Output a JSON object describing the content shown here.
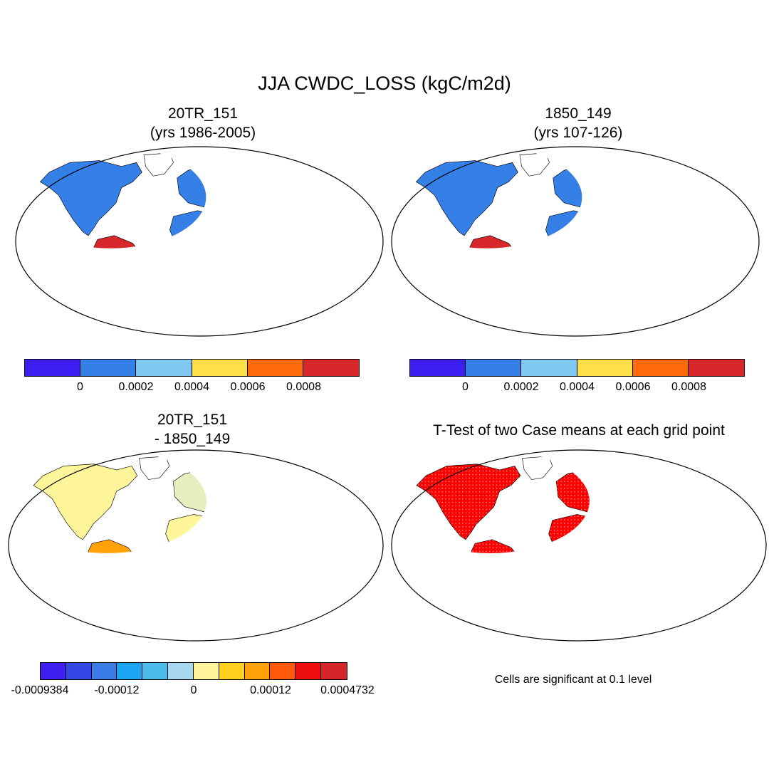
{
  "title": "JJA CWDC_LOSS (kgC/m2d)",
  "panels": [
    {
      "id": "case1",
      "title_line1": "20TR_151",
      "title_line2": "(yrs 1986-2005)",
      "colorbar": {
        "colors": [
          "#3c1ff0",
          "#3580e6",
          "#7fc8f0",
          "#fde048",
          "#ff6a0a",
          "#d8272a"
        ],
        "tick_labels": [
          "0",
          "0.0002",
          "0.0004",
          "0.0006",
          "0.0008"
        ]
      }
    },
    {
      "id": "case2",
      "title_line1": "1850_149",
      "title_line2": "(yrs 107-126)",
      "colorbar": {
        "colors": [
          "#3c1ff0",
          "#3580e6",
          "#7fc8f0",
          "#fde048",
          "#ff6a0a",
          "#d8272a"
        ],
        "tick_labels": [
          "0",
          "0.0002",
          "0.0004",
          "0.0006",
          "0.0008"
        ]
      }
    },
    {
      "id": "difference",
      "title_line1": "20TR_151",
      "title_line2": "- 1850_149",
      "colorbar": {
        "colors": [
          "#3d1ff0",
          "#3448e6",
          "#3b7de8",
          "#1aa5f2",
          "#4bbbec",
          "#a9d8f2",
          "#fff59a",
          "#ffd11f",
          "#ffa20a",
          "#ff5a0a",
          "#ee0e10",
          "#d6262a"
        ],
        "tick_labels": [
          "-0.0009384",
          "-0.00012",
          "0",
          "0.00012",
          "0.0004732"
        ]
      }
    },
    {
      "id": "ttest",
      "title_line1": "T-Test of two Case means at each grid point",
      "note": "Cells are significant at 0.1 level",
      "significant_color": "#ff0000"
    }
  ]
}
